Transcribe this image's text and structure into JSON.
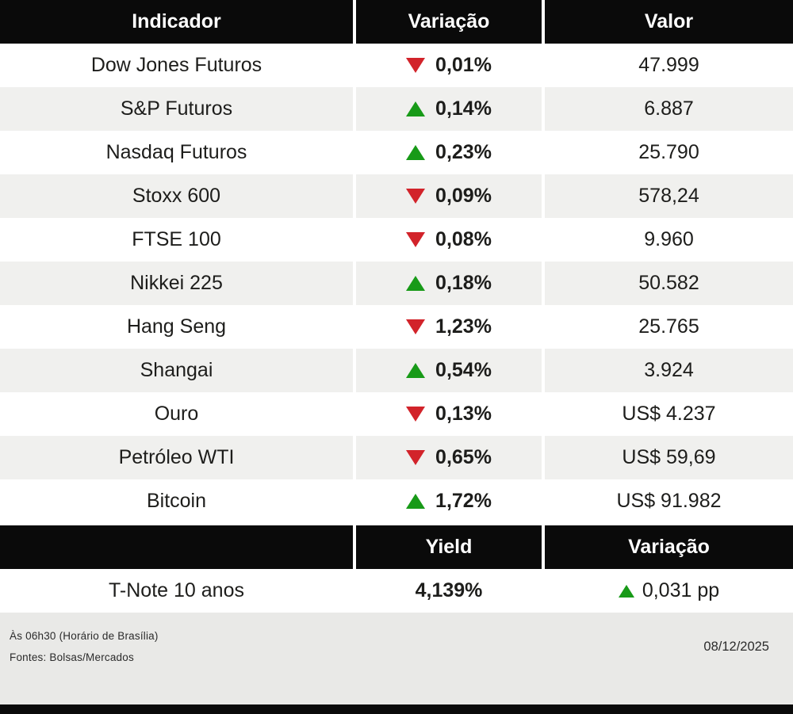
{
  "colors": {
    "up": "#189a18",
    "down": "#d2232a",
    "header_bg": "#0a0a0a",
    "row_alt": "#f0f0ee",
    "footer_bg": "#e9e9e7",
    "text": "#1d1d1b"
  },
  "chart_data": [
    {
      "type": "table",
      "columns": [
        "Indicador",
        "Variação",
        "Valor"
      ],
      "rows": [
        {
          "indicator": "Dow Jones Futuros",
          "direction": "down",
          "variation": "0,01%",
          "value": "47.999"
        },
        {
          "indicator": "S&P Futuros",
          "direction": "up",
          "variation": "0,14%",
          "value": "6.887"
        },
        {
          "indicator": "Nasdaq Futuros",
          "direction": "up",
          "variation": "0,23%",
          "value": "25.790"
        },
        {
          "indicator": "Stoxx 600",
          "direction": "down",
          "variation": "0,09%",
          "value": "578,24"
        },
        {
          "indicator": "FTSE 100",
          "direction": "down",
          "variation": "0,08%",
          "value": "9.960"
        },
        {
          "indicator": "Nikkei 225",
          "direction": "up",
          "variation": "0,18%",
          "value": "50.582"
        },
        {
          "indicator": "Hang Seng",
          "direction": "down",
          "variation": "1,23%",
          "value": "25.765"
        },
        {
          "indicator": "Shangai",
          "direction": "up",
          "variation": "0,54%",
          "value": "3.924"
        },
        {
          "indicator": "Ouro",
          "direction": "down",
          "variation": "0,13%",
          "value": "US$ 4.237"
        },
        {
          "indicator": "Petróleo WTI",
          "direction": "down",
          "variation": "0,65%",
          "value": "US$ 59,69"
        },
        {
          "indicator": "Bitcoin",
          "direction": "up",
          "variation": "1,72%",
          "value": "US$ 91.982"
        }
      ]
    },
    {
      "type": "table",
      "columns": [
        "",
        "Yield",
        "Variação"
      ],
      "rows": [
        {
          "indicator": "T-Note 10 anos",
          "yield": "4,139%",
          "direction": "up",
          "variation": "0,031 pp"
        }
      ]
    }
  ],
  "footer": {
    "time_note": "Às 06h30 (Horário de Brasília)",
    "sources": "Fontes: Bolsas/Mercados",
    "date": "08/12/2025"
  }
}
